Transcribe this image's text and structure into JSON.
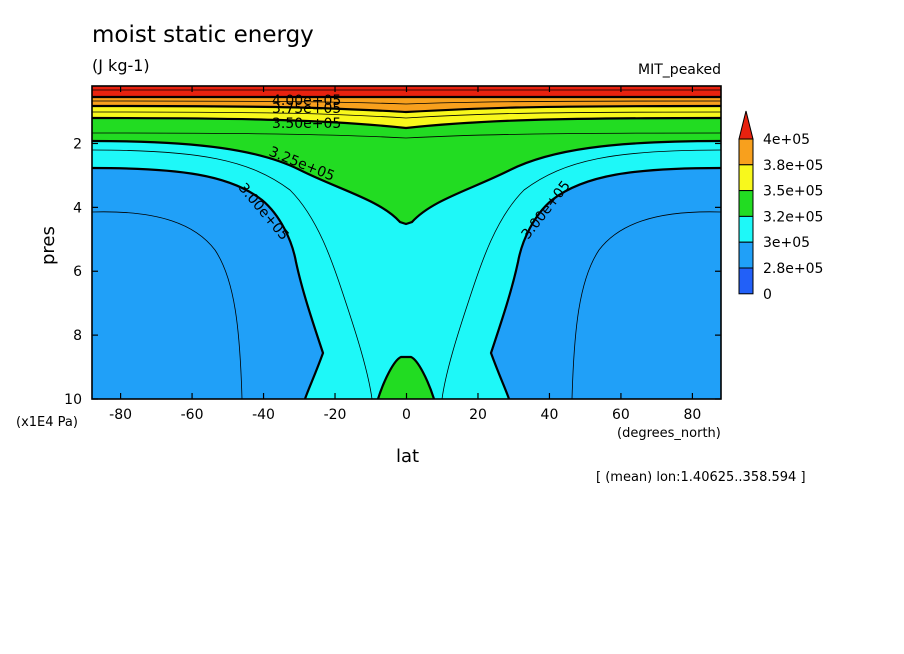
{
  "chart_data": {
    "type": "contour",
    "title": "moist static energy",
    "units": "(J kg-1)",
    "dataset": "MIT_peaked",
    "xlabel": "lat",
    "x_unit_label": "(degrees_north)",
    "ylabel": "pres",
    "y_unit_label": "(x1E4 Pa)",
    "footnote": "[ (mean) lon:1.40625..358.594 ]",
    "xlim": [
      -88,
      88
    ],
    "ylim": [
      0.2,
      10
    ],
    "y_inverted": true,
    "x_ticks": [
      "-80",
      "-60",
      "-40",
      "-20",
      "0",
      "20",
      "40",
      "60",
      "80"
    ],
    "y_ticks": [
      "2",
      "4",
      "6",
      "8",
      "10"
    ],
    "contour_labels": [
      "4.00e+05",
      "3.75e+05",
      "3.50e+05",
      "3.25e+05",
      "3.00e+05",
      "3.00e+05"
    ],
    "colorbar": {
      "labels": [
        "4e+05",
        "3.8e+05",
        "3.5e+05",
        "3.2e+05",
        "3e+05",
        "2.8e+05",
        "0"
      ],
      "colors": [
        "#e8220f",
        "#f8a01d",
        "#f8f81c",
        "#22dc22",
        "#1ef8f8",
        "#20a0f8",
        "#2260f8"
      ]
    }
  }
}
